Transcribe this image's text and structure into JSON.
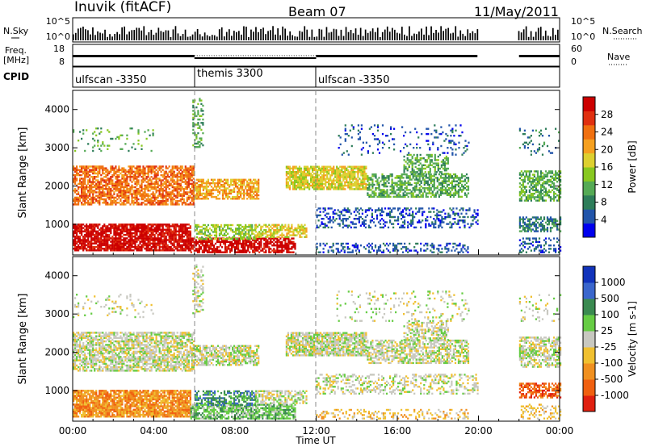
{
  "header": {
    "station": "Inuvik (fitACF)",
    "beam": "Beam 07",
    "date": "11/May/2011"
  },
  "left_labels": {
    "nsky": "N.Sky",
    "freq_line1": "Freq.",
    "freq_line2": "[MHz]",
    "cpid": "CPID"
  },
  "right_labels": {
    "nsearch": "N.Search",
    "nave": "Nave"
  },
  "noise_panel": {
    "left_ticks": [
      "10^5",
      "10^0"
    ],
    "right_ticks": [
      "10^5",
      "10^0"
    ]
  },
  "freq_panel": {
    "left_ticks": [
      "18",
      "8"
    ],
    "right_ticks": [
      "60",
      "0"
    ]
  },
  "cpid_panel": {
    "segments": [
      {
        "label": "ulfscan -3350",
        "start_h": 0,
        "end_h": 6
      },
      {
        "label": "themis 3300",
        "start_h": 6,
        "end_h": 12
      },
      {
        "label": "ulfscan -3350",
        "start_h": 12,
        "end_h": 24
      }
    ]
  },
  "chart_data": [
    {
      "type": "heatmap",
      "name": "power",
      "xlabel": "",
      "ylabel": "Slant Range [km]",
      "ylim": [
        200,
        4500
      ],
      "xlim": [
        0,
        24
      ],
      "y_ticks": [
        "1000",
        "2000",
        "3000",
        "4000"
      ],
      "colorbar": {
        "label": "Power [dB]",
        "ticks": [
          "4",
          "8",
          "12",
          "16",
          "20",
          "24",
          "28"
        ],
        "colors": [
          "#0000ee",
          "#2255aa",
          "#2e7d5a",
          "#55aa55",
          "#88c820",
          "#ddd030",
          "#f5a020",
          "#f07010",
          "#e03010",
          "#cc0000"
        ]
      },
      "data_gap_h": [
        20,
        22
      ]
    },
    {
      "type": "heatmap",
      "name": "velocity",
      "xlabel": "Time UT",
      "ylabel": "Slant Range [km]",
      "ylim": [
        200,
        4500
      ],
      "xlim": [
        0,
        24
      ],
      "x_ticks": [
        "00:00",
        "04:00",
        "08:00",
        "12:00",
        "16:00",
        "20:00",
        "00:00"
      ],
      "y_ticks": [
        "1000",
        "2000",
        "3000",
        "4000"
      ],
      "colorbar": {
        "label": "Velocity [m s-1]",
        "ticks": [
          "1000",
          "500",
          "100",
          "25",
          "-25",
          "-100",
          "-500",
          "-1000"
        ],
        "colors": [
          "#1133bb",
          "#3a66cc",
          "#3a8a50",
          "#66cc44",
          "#c8c8c0",
          "#f0c030",
          "#f09020",
          "#f06010",
          "#e02010"
        ]
      },
      "data_gap_h": [
        20,
        22
      ]
    }
  ],
  "colors": {
    "gray_ground": "#c8c8c0",
    "dash_line": "#888888"
  }
}
